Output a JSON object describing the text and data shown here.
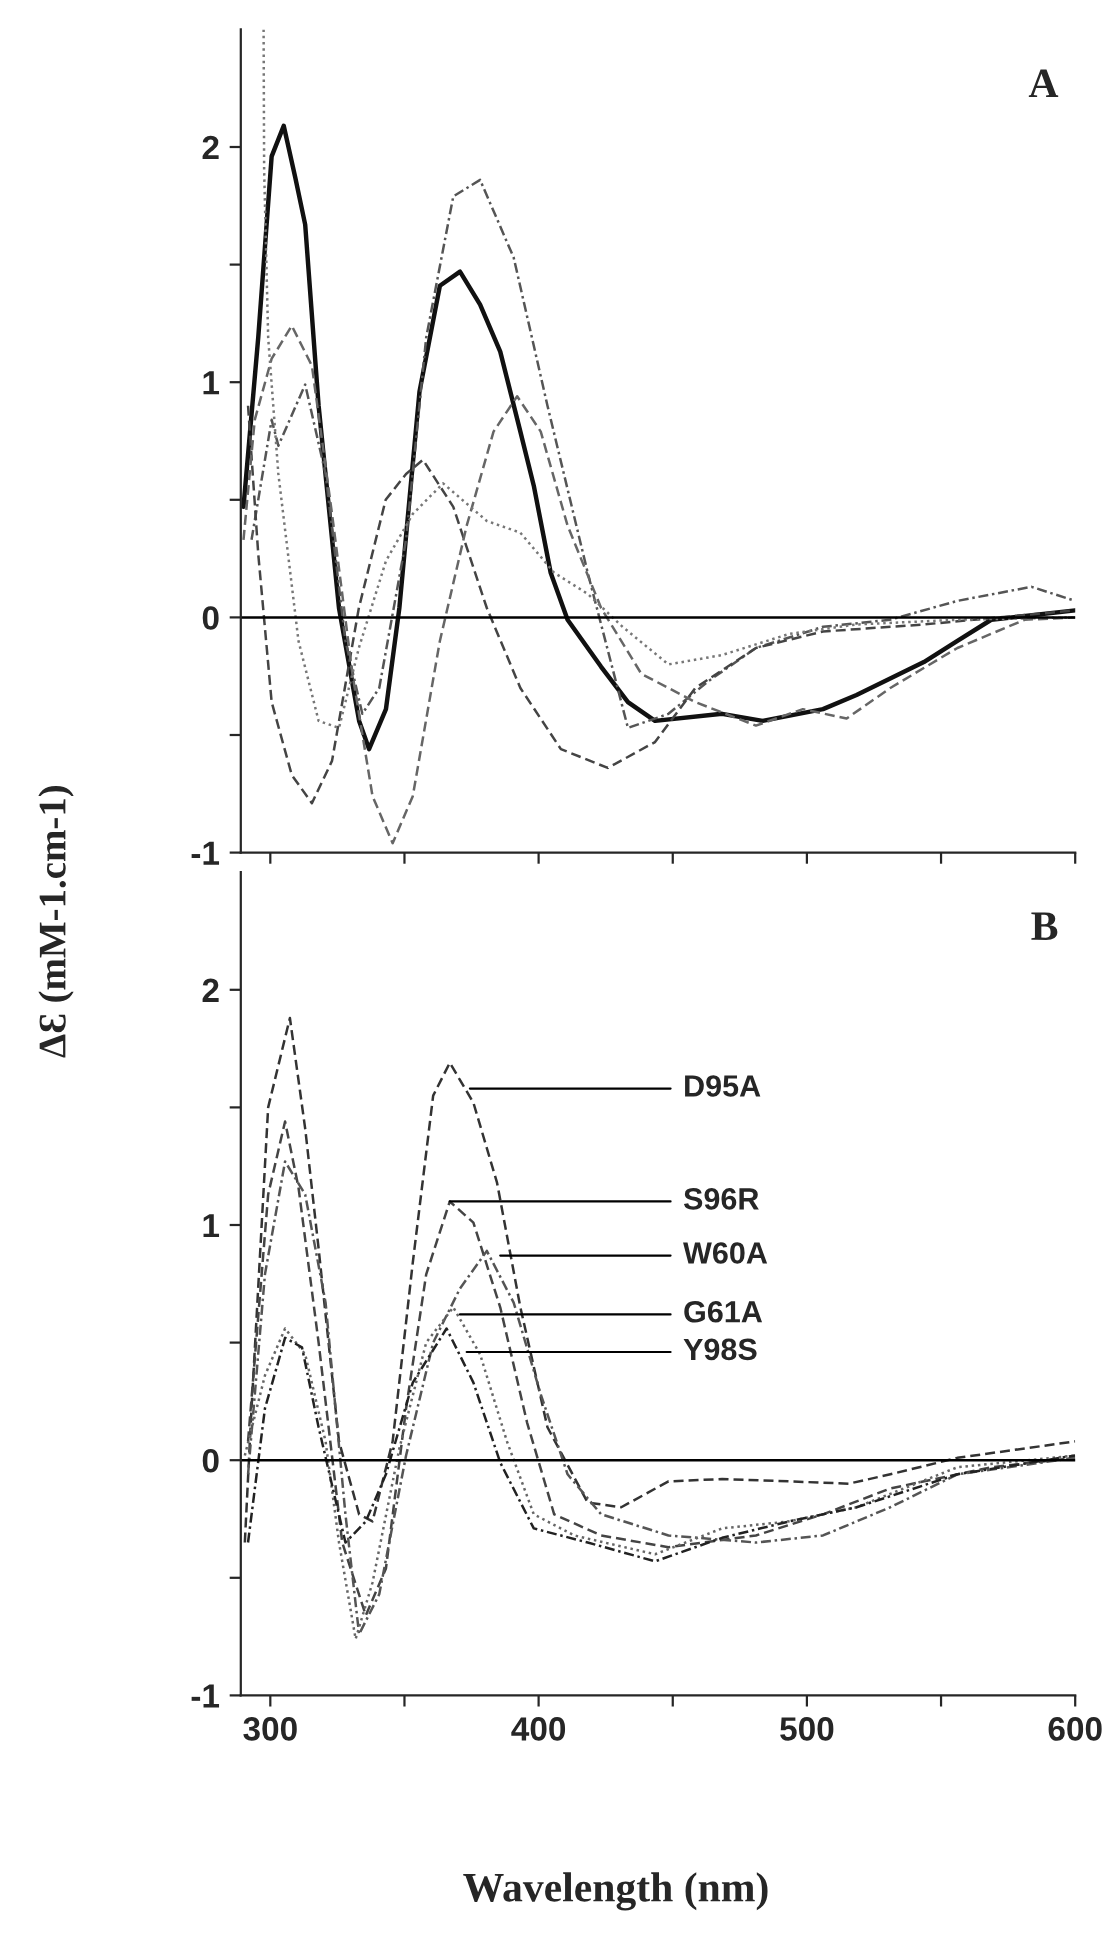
{
  "chart_data": [
    {
      "type": "line",
      "ylabel": "ΔƐ (mM-1.cm-1)",
      "annotations": [
        "A"
      ],
      "xlim": [
        289,
        600
      ],
      "ylim": [
        -1,
        2.5
      ],
      "xticks": [
        {
          "value": 300,
          "label": null
        },
        {
          "value": 350,
          "label": null
        },
        {
          "value": 400,
          "label": null
        },
        {
          "value": 450,
          "label": null
        },
        {
          "value": 500,
          "label": null
        },
        {
          "value": 550,
          "label": null
        },
        {
          "value": 600,
          "label": null
        }
      ],
      "yticks": [
        -1,
        {
          "value": -0.5,
          "label": null
        },
        0,
        {
          "value": 0.5,
          "label": null
        },
        1,
        {
          "value": 1.5,
          "label": null
        },
        2
      ],
      "tick_labels": "y",
      "grid": false,
      "legend": false,
      "ref_lines": [
        {
          "axis": "y",
          "value": 0,
          "label": null,
          "color": "#000000",
          "line_style": "solid"
        }
      ],
      "series": [
        {
          "color": "#111111",
          "line_style": "solid",
          "x": [
            290.0,
            295.5,
            300.5,
            305.0,
            309.3,
            313.0,
            318.0,
            325.6,
            333.1,
            336.8,
            343.1,
            348.1,
            355.6,
            363.2,
            370.7,
            378.2,
            385.7,
            393.2,
            398.2,
            404.5,
            410.8,
            423.3,
            433.3,
            443.4,
            468.4,
            483.5,
            506.0,
            518.5,
            543.6,
            556.1,
            568.7,
            600
          ],
          "values": [
            0.47,
            1.19,
            1.96,
            2.09,
            1.87,
            1.67,
            0.9,
            0.04,
            -0.44,
            -0.56,
            -0.39,
            0.04,
            0.96,
            1.41,
            1.47,
            1.33,
            1.13,
            0.79,
            0.56,
            0.19,
            -0.01,
            -0.21,
            -0.36,
            -0.44,
            -0.41,
            -0.44,
            -0.39,
            -0.33,
            -0.19,
            -0.1,
            -0.01,
            0.03
          ]
        },
        {
          "color": "#555555",
          "line_style": "dashdot",
          "x": [
            293,
            300.5,
            303,
            313,
            320.6,
            328,
            334.3,
            340.6,
            350.6,
            358.1,
            368.2,
            378.2,
            390.7,
            403.3,
            418.3,
            433.3,
            448.4,
            463.4,
            481,
            506,
            531,
            556,
            583.7,
            600
          ],
          "values": [
            0.33,
            0.84,
            0.73,
            0.99,
            0.61,
            -0.1,
            -0.41,
            -0.3,
            0.33,
            1.19,
            1.79,
            1.86,
            1.53,
            0.9,
            0.19,
            -0.47,
            -0.41,
            -0.27,
            -0.13,
            -0.04,
            -0.01,
            0.07,
            0.13,
            0.07
          ]
        },
        {
          "color": "#444444",
          "line_style": "dashed",
          "x": [
            291.7,
            295.5,
            300.5,
            308,
            315.5,
            323,
            333,
            343,
            350.6,
            356.9,
            368.2,
            380.7,
            393.2,
            408.3,
            425.8,
            443.4,
            458.4,
            481,
            506,
            543.6,
            581.2,
            600
          ],
          "values": [
            0.9,
            0.27,
            -0.36,
            -0.67,
            -0.79,
            -0.61,
            0.04,
            0.5,
            0.61,
            0.67,
            0.47,
            0.04,
            -0.3,
            -0.56,
            -0.64,
            -0.53,
            -0.3,
            -0.13,
            -0.06,
            -0.03,
            0.01,
            0.03
          ]
        },
        {
          "color": "#666666",
          "line_style": "dashed",
          "x": [
            290,
            294.2,
            300.5,
            308,
            315.5,
            323,
            330.6,
            338.1,
            345.6,
            353.1,
            363.2,
            373.2,
            383.2,
            392,
            400.8,
            410.8,
            423.3,
            438.3,
            458.4,
            481,
            498.5,
            514.8,
            531.1,
            556.1,
            581.2,
            600
          ],
          "values": [
            0.33,
            0.84,
            1.1,
            1.24,
            1.07,
            0.44,
            -0.24,
            -0.76,
            -0.96,
            -0.76,
            -0.1,
            0.39,
            0.79,
            0.94,
            0.79,
            0.39,
            0.04,
            -0.24,
            -0.36,
            -0.46,
            -0.39,
            -0.43,
            -0.3,
            -0.13,
            -0.01,
            0.0
          ]
        },
        {
          "color": "#777777",
          "line_style": "dotted",
          "x": [
            297.5,
            297.7,
            299.2,
            303,
            310.5,
            318,
            325.6,
            333,
            343.1,
            353.1,
            364.4,
            380.7,
            393.2,
            405.8,
            418.3,
            431.3,
            448.4,
            468.4,
            493.5,
            518.5,
            556.1,
            600
          ],
          "values": [
            2.5,
            1.9,
            1.19,
            0.61,
            -0.1,
            -0.44,
            -0.47,
            -0.13,
            0.24,
            0.44,
            0.57,
            0.41,
            0.36,
            0.19,
            0.1,
            -0.04,
            -0.2,
            -0.16,
            -0.07,
            -0.03,
            -0.01,
            0.0
          ]
        }
      ]
    },
    {
      "type": "line",
      "xlabel": "Wavelength (nm)",
      "xlim": [
        289,
        600
      ],
      "ylim": [
        -1,
        2.5
      ],
      "annotations": [
        "B",
        {
          "text": "D95A",
          "x": 374.4,
          "y": 1.58
        },
        {
          "text": "S96R",
          "x": 366.9,
          "y": 1.1
        },
        {
          "text": "W60A",
          "x": 385.7,
          "y": 0.87
        },
        {
          "text": "G61A",
          "x": 370.7,
          "y": 0.62
        },
        {
          "text": "Y98S",
          "x": 373.2,
          "y": 0.46
        }
      ],
      "xticks": [
        300,
        {
          "value": 350,
          "label": null
        },
        400,
        {
          "value": 450,
          "label": null
        },
        500,
        {
          "value": 550,
          "label": null
        },
        600
      ],
      "yticks": [
        -1,
        {
          "value": -0.5,
          "label": null
        },
        0,
        {
          "value": 0.5,
          "label": null
        },
        1,
        {
          "value": 1.5,
          "label": null
        },
        2
      ],
      "grid": false,
      "legend": false,
      "ref_lines": [
        {
          "axis": "y",
          "value": 0,
          "label": null,
          "color": "#000000",
          "line_style": "solid"
        }
      ],
      "series": [
        {
          "color": "#333333",
          "line_style": "dashed",
          "x": [
            290.5,
            293,
            299.2,
            307.3,
            313,
            318,
            325.6,
            333.1,
            338.1,
            345.6,
            353.1,
            360.7,
            366.9,
            375.7,
            384.5,
            393.2,
            403.3,
            418.3,
            430.8,
            448.4,
            468.4,
            493.5,
            515.5,
            531.1,
            556.1,
            581.2,
            600
          ],
          "values": [
            -0.35,
            0.22,
            1.5,
            1.88,
            1.41,
            0.9,
            0.08,
            -0.23,
            -0.26,
            0.08,
            0.84,
            1.55,
            1.69,
            1.52,
            1.18,
            0.65,
            0.14,
            -0.18,
            -0.2,
            -0.09,
            -0.08,
            -0.09,
            -0.1,
            -0.06,
            0.01,
            0.05,
            0.08
          ]
        },
        {
          "color": "#444444",
          "line_style": "dashed",
          "x": [
            291.7,
            299.2,
            305.5,
            310.5,
            318,
            326.8,
            335.6,
            343.1,
            350.6,
            358.1,
            366.9,
            375.7,
            385.7,
            395.7,
            405.8,
            423.3,
            448.4,
            481,
            506,
            531.1,
            568.7,
            600
          ],
          "values": [
            0.08,
            1.13,
            1.44,
            1.16,
            0.5,
            -0.35,
            -0.66,
            -0.46,
            0.22,
            0.79,
            1.1,
            1.01,
            0.65,
            0.16,
            -0.23,
            -0.32,
            -0.37,
            -0.32,
            -0.23,
            -0.12,
            -0.03,
            0.01
          ]
        },
        {
          "color": "#555555",
          "line_style": "dashdot",
          "x": [
            291.7,
            298,
            305.5,
            313,
            320.6,
            328,
            333.1,
            340.6,
            350.6,
            360.7,
            370.7,
            380.7,
            390.7,
            400.8,
            410.8,
            423.3,
            448.4,
            481,
            506,
            531.1,
            556.1,
            600
          ],
          "values": [
            -0.06,
            0.79,
            1.27,
            1.13,
            0.67,
            -0.23,
            -0.74,
            -0.57,
            0.02,
            0.5,
            0.73,
            0.89,
            0.67,
            0.28,
            -0.06,
            -0.23,
            -0.32,
            -0.35,
            -0.32,
            -0.2,
            -0.06,
            0.01
          ]
        },
        {
          "color": "#666666",
          "line_style": "dotted",
          "x": [
            290.5,
            298,
            305.5,
            313,
            320.6,
            325.6,
            331.8,
            338.1,
            348.1,
            358.1,
            368.2,
            378.2,
            388.2,
            398.2,
            413.3,
            443.4,
            468.4,
            493.5,
            518.5,
            556.1,
            600
          ],
          "values": [
            0.02,
            0.36,
            0.56,
            0.45,
            0.08,
            -0.35,
            -0.76,
            -0.52,
            0.05,
            0.5,
            0.65,
            0.45,
            0.08,
            -0.23,
            -0.32,
            -0.4,
            -0.29,
            -0.26,
            -0.2,
            -0.03,
            0.02
          ]
        },
        {
          "color": "#222222",
          "line_style": "dashdot",
          "x": [
            291.7,
            298,
            305.5,
            311.8,
            318,
            328,
            335.6,
            343.1,
            353.1,
            365.7,
            375.7,
            385.7,
            398.2,
            418.3,
            443.4,
            468.4,
            493.5,
            518.5,
            556.1,
            600
          ],
          "values": [
            -0.35,
            0.22,
            0.52,
            0.48,
            0.14,
            -0.35,
            -0.26,
            -0.06,
            0.33,
            0.56,
            0.33,
            -0.01,
            -0.29,
            -0.35,
            -0.43,
            -0.33,
            -0.26,
            -0.2,
            -0.06,
            0.02
          ]
        }
      ]
    }
  ]
}
